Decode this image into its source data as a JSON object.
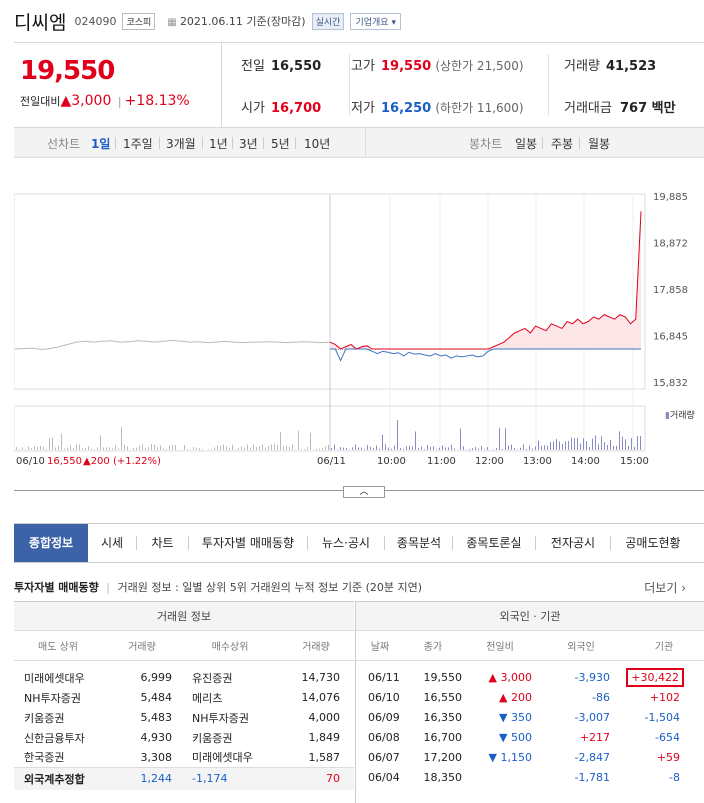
{
  "header": {
    "name": "디씨엠",
    "code": "024090",
    "market": "코스피",
    "date": "2021.06.11 기준(장마감)",
    "realtime": "실시간",
    "corp_info": "기업개요"
  },
  "price": {
    "current": "19,550",
    "change_label": "전일대비",
    "change_arrow": "▲",
    "change": "3,000",
    "change_pct": "+18.13%"
  },
  "stats": {
    "prev_label": "전일",
    "prev": "16,550",
    "high_label": "고가",
    "high": "19,550",
    "upper_limit": "(상한가 21,500)",
    "volume_label": "거래량",
    "volume": "41,523",
    "open_label": "시가",
    "open": "16,700",
    "low_label": "저가",
    "low": "16,250",
    "lower_limit": "(하한가 11,600)",
    "amount_label": "거래대금",
    "amount": "767 백만"
  },
  "periods": {
    "line_label": "선차트",
    "items": [
      "1일",
      "1주일",
      "3개월",
      "1년",
      "3년",
      "5년",
      "10년"
    ],
    "selected": "1일",
    "candle_label": "봉차트",
    "candle_items": [
      "일봉",
      "주봉",
      "월봉"
    ]
  },
  "chart_data": {
    "type": "line",
    "y_ticks": [
      "19,885",
      "18,872",
      "17,858",
      "16,845",
      "15,832"
    ],
    "ylim": [
      15832,
      19885
    ],
    "x_ticks": [
      "06/11",
      "10:00",
      "11:00",
      "12:00",
      "13:00",
      "14:00",
      "15:00"
    ],
    "prev_day_label": "06/10",
    "prev_close_line": 16550,
    "prev_info_price": "16,550",
    "prev_info_change": "▲200 (+1.22%)",
    "volume_label": "거래량",
    "prev_day_series": [
      16550,
      16560,
      16570,
      16540,
      16560,
      16600,
      16650,
      16700,
      16720,
      16700,
      16720,
      16730,
      16700,
      16710,
      16730,
      16720,
      16700,
      16720,
      16740,
      16720,
      16700,
      16710,
      16690,
      16700,
      16720,
      16700,
      16690,
      16700,
      16700,
      16710,
      16700,
      16690,
      16700,
      16710,
      16700,
      16690,
      16700
    ],
    "today_series": [
      16700,
      16650,
      16300,
      16600,
      16650,
      16550,
      16600,
      16620,
      16500,
      16450,
      16500,
      16480,
      16450,
      16470,
      16400,
      16480,
      16440,
      16450,
      16420,
      16400,
      16450,
      16400,
      16420,
      16350,
      16400,
      16380,
      16400,
      16420,
      16380,
      16400,
      16500,
      16600,
      16650,
      16700,
      16800,
      16900,
      16950,
      17000,
      16900,
      17050,
      17000,
      16950,
      17100,
      17050,
      17000,
      17150,
      17100,
      17200,
      17100,
      17150,
      17250,
      17200,
      17300,
      17250,
      17200,
      17300,
      17250,
      17100,
      17200,
      19550
    ]
  },
  "tabs": [
    "종합정보",
    "시세",
    "차트",
    "투자자별 매매동향",
    "뉴스·공시",
    "종목분석",
    "종목토론실",
    "전자공시",
    "공매도현황"
  ],
  "section": {
    "title": "투자자별 매매동향",
    "desc": "거래원 정보 : 일별 상위 5위 거래원의 누적 정보 기준 (20분 지연)",
    "more": "더보기"
  },
  "broker": {
    "title": "거래원 정보",
    "cols": [
      "매도 상위",
      "거래량",
      "매수상위",
      "거래량"
    ],
    "rows": [
      [
        "미래에셋대우",
        "6,999",
        "유진증권",
        "14,730"
      ],
      [
        "NH투자증권",
        "5,484",
        "메리츠",
        "14,076"
      ],
      [
        "키움증권",
        "5,483",
        "NH투자증권",
        "4,000"
      ],
      [
        "신한금융투자",
        "4,930",
        "키움증권",
        "1,849"
      ],
      [
        "한국증권",
        "3,308",
        "미래에셋대우",
        "1,587"
      ]
    ],
    "foreign_label": "외국계추정합",
    "foreign_sell": "1,244",
    "foreign_net": "-1,174",
    "foreign_buy": "70"
  },
  "investor": {
    "title": "외국인 · 기관",
    "cols": [
      "날짜",
      "종가",
      "전일비",
      "외국인",
      "기관"
    ],
    "rows": [
      [
        "06/11",
        "19,550",
        "▲ 3,000",
        "-3,930",
        "+30,422"
      ],
      [
        "06/10",
        "16,550",
        "▲ 200",
        "-86",
        "+102"
      ],
      [
        "06/09",
        "16,350",
        "▼ 350",
        "-3,007",
        "-1,504"
      ],
      [
        "06/08",
        "16,700",
        "▼ 500",
        "+217",
        "-654"
      ],
      [
        "06/07",
        "17,200",
        "▼ 1,150",
        "-2,847",
        "+59"
      ],
      [
        "06/04",
        "18,350",
        "",
        "-1,781",
        "-8"
      ]
    ]
  },
  "colors": {
    "up": "#e0001b",
    "down": "#1a5fc7",
    "tab_active": "#3c62a8"
  }
}
